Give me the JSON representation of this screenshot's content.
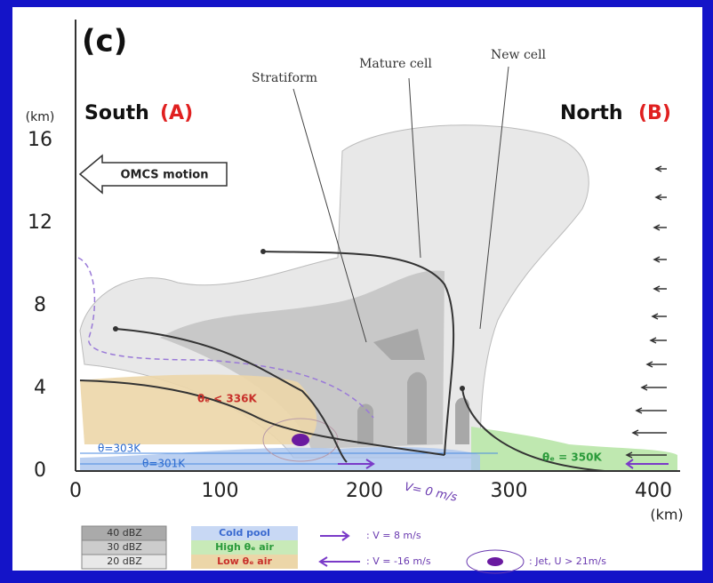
{
  "panel_label": "(c)",
  "y_axis": {
    "unit": "(km)",
    "ticks": [
      0,
      4,
      8,
      12,
      16
    ]
  },
  "x_axis": {
    "unit": "(km)",
    "ticks": [
      0,
      100,
      200,
      300,
      400
    ]
  },
  "regions": {
    "south": "South",
    "south_tag": "(A)",
    "north": "North",
    "north_tag": "(B)"
  },
  "motion": "OMCS motion",
  "callouts": [
    "Stratiform",
    "Mature cell",
    "New cell"
  ],
  "annotations": {
    "low_theta": "θₑ < 336K",
    "theta303": "θ=303K",
    "theta301": "θ=301K",
    "high_theta": "θₑ = 350K",
    "v0": "V= 0 m/s"
  },
  "legend": {
    "dbz": [
      "40 dBZ",
      "30 dBZ",
      "20 dBZ"
    ],
    "air": [
      "Cold pool",
      "High θₑ air",
      "Low θₑ air"
    ],
    "v_pos": ": V = 8 m/s",
    "v_neg": ": V = -16 m/s",
    "jet": ": Jet, U > 21m/s"
  }
}
